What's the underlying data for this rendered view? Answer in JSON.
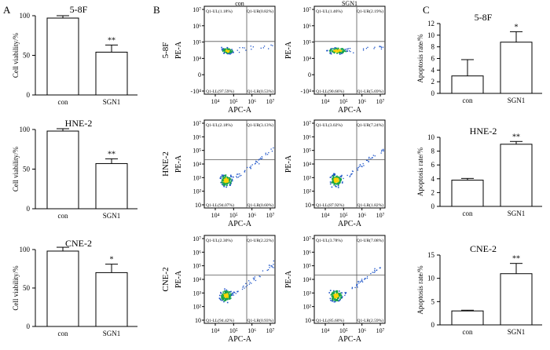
{
  "figure": {
    "panels": [
      "A",
      "B",
      "C"
    ],
    "cell_lines": [
      "5-8F",
      "HNE-2",
      "CNE-2"
    ]
  },
  "chart_data": [
    {
      "type": "bar",
      "panel": "A",
      "title": "5-8F",
      "ylabel": "Cell viability/%",
      "categories": [
        "con",
        "SGN1"
      ],
      "values": [
        97,
        54
      ],
      "errors": [
        3,
        9
      ],
      "sig": [
        "",
        "**"
      ],
      "ylim": [
        0,
        100
      ],
      "yticks": [
        "0",
        "50",
        "100"
      ]
    },
    {
      "type": "bar",
      "panel": "A",
      "title": "HNE-2",
      "ylabel": "Cell viability/%",
      "categories": [
        "con",
        "SGN1"
      ],
      "values": [
        98,
        57
      ],
      "errors": [
        3,
        6
      ],
      "sig": [
        "",
        "**"
      ],
      "ylim": [
        0,
        100
      ],
      "yticks": [
        "0",
        "50",
        "100"
      ]
    },
    {
      "type": "bar",
      "panel": "A",
      "title": "CNE-2",
      "ylabel": "Cell viability/%",
      "categories": [
        "con",
        "SGN1"
      ],
      "values": [
        98,
        70
      ],
      "errors": [
        5,
        11
      ],
      "sig": [
        "",
        "*"
      ],
      "ylim": [
        0,
        100
      ],
      "yticks": [
        "0",
        "50",
        "100"
      ]
    },
    {
      "type": "scatter",
      "panel": "B",
      "row_label": "5-8F",
      "column": "con",
      "xlabel": "APC-A",
      "ylabel": "PE-A",
      "xticks": [
        "10⁴",
        "10⁵",
        "10⁶",
        "10⁷"
      ],
      "yticks": [
        "-10⁴",
        "0",
        "10⁴",
        "10⁵",
        "10⁶",
        "10⁷"
      ],
      "quadrants": {
        "UL": "Q1-UL(1.18%)",
        "UR": "Q1-UR(0.82%)",
        "LL": "Q1-LL(97.59%)",
        "LR": "Q1-LR(0.53%)"
      }
    },
    {
      "type": "scatter",
      "panel": "B",
      "row_label": "",
      "column": "SGN1",
      "xlabel": "APC-A",
      "ylabel": "PE-A",
      "xticks": [
        "10⁴",
        "10⁵",
        "10⁶",
        "10⁷"
      ],
      "yticks": [
        "-10⁴",
        "0",
        "10⁴",
        "10⁵",
        "10⁶",
        "10⁷"
      ],
      "quadrants": {
        "UL": "Q1-UL(1.46%)",
        "UR": "Q1-UR(2.19%)",
        "LL": "Q1-LL(90.66%)",
        "LR": "Q1-LR(5.69%)"
      }
    },
    {
      "type": "scatter",
      "panel": "B",
      "row_label": "HNE-2",
      "column": "",
      "xlabel": "APC-A",
      "ylabel": "PE-A",
      "xticks": [
        "10⁴",
        "10⁵",
        "10⁶",
        "10⁷"
      ],
      "yticks": [
        "10",
        "10²",
        "10³",
        "10⁴",
        "10⁵",
        "10⁶",
        "10⁷"
      ],
      "quadrants": {
        "UL": "Q1-UL(2.18%)",
        "UR": "Q1-UR(3.13%)",
        "LL": "Q1-LL(94.07%)",
        "LR": "Q1-LR(0.60%)"
      }
    },
    {
      "type": "scatter",
      "panel": "B",
      "row_label": "",
      "column": "",
      "xlabel": "APC-A",
      "ylabel": "PE-A",
      "xticks": [
        "10⁴",
        "10⁵",
        "10⁶",
        "10⁷"
      ],
      "yticks": [
        "10",
        "10²",
        "10³",
        "10⁴",
        "10⁵",
        "10⁶",
        "10⁷"
      ],
      "quadrants": {
        "UL": "Q1-UL(3.02%)",
        "UR": "Q1-UR(7.24%)",
        "LL": "Q1-LL(87.92%)",
        "LR": "Q1-LR(1.82%)"
      }
    },
    {
      "type": "scatter",
      "panel": "B",
      "row_label": "CNE-2",
      "column": "",
      "xlabel": "APC-A",
      "ylabel": "PE-A",
      "xticks": [
        "10⁴",
        "10⁵",
        "10⁶",
        "10⁷"
      ],
      "yticks": [
        "10",
        "10²",
        "10³",
        "10⁴",
        "10⁵",
        "10⁶",
        "10⁷"
      ],
      "quadrants": {
        "UL": "Q1-UL(2.30%)",
        "UR": "Q1-UR(2.22%)",
        "LL": "Q1-LL(94.42%)",
        "LR": "Q1-LR(0.93%)"
      }
    },
    {
      "type": "scatter",
      "panel": "B",
      "row_label": "",
      "column": "",
      "xlabel": "APC-A",
      "ylabel": "PE-A",
      "xticks": [
        "10⁴",
        "10⁵",
        "10⁶",
        "10⁷"
      ],
      "yticks": [
        "10",
        "10²",
        "10³",
        "10⁴",
        "10⁵",
        "10⁶",
        "10⁷"
      ],
      "quadrants": {
        "UL": "Q1-UL(3.78%)",
        "UR": "Q1-UR(7.08%)",
        "LL": "Q1-LL(85.60%)",
        "LR": "Q1-LR(2.59%)"
      }
    },
    {
      "type": "bar",
      "panel": "C",
      "title": "5-8F",
      "ylabel": "Apoptosis rate/%",
      "categories": [
        "con",
        "SGN1"
      ],
      "values": [
        3,
        8.8
      ],
      "errors": [
        2.8,
        1.8
      ],
      "sig": [
        "",
        "*"
      ],
      "ylim": [
        0,
        12
      ],
      "yticks": [
        "0",
        "2",
        "4",
        "6",
        "8",
        "10",
        "12"
      ]
    },
    {
      "type": "bar",
      "panel": "C",
      "title": "HNE-2",
      "ylabel": "Apoptosis rate/%",
      "categories": [
        "con",
        "SGN1"
      ],
      "values": [
        3.8,
        9.0
      ],
      "errors": [
        0.25,
        0.4
      ],
      "sig": [
        "",
        "**"
      ],
      "ylim": [
        0,
        10
      ],
      "yticks": [
        "0",
        "2",
        "4",
        "6",
        "8",
        "10"
      ]
    },
    {
      "type": "bar",
      "panel": "C",
      "title": "CNE-2",
      "ylabel": "Apoptosis rate/%",
      "categories": [
        "con",
        "SGN1"
      ],
      "values": [
        3.0,
        11.0
      ],
      "errors": [
        0.15,
        2.2
      ],
      "sig": [
        "",
        "**"
      ],
      "ylim": [
        0,
        15
      ],
      "yticks": [
        "0",
        "5",
        "10",
        "15"
      ]
    }
  ]
}
